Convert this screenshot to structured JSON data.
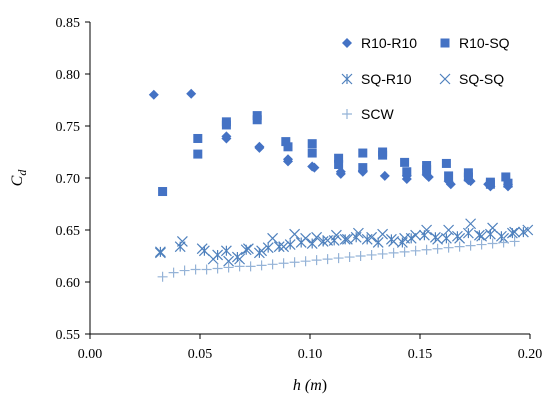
{
  "chart_data": {
    "type": "scatter",
    "xlabel": "h (m)",
    "ylabel": "C_d",
    "xlim": [
      0.0,
      0.2
    ],
    "ylim": [
      0.55,
      0.85
    ],
    "xticks": [
      "0.00",
      "0.05",
      "0.10",
      "0.15",
      "0.20"
    ],
    "yticks": [
      "0.55",
      "0.60",
      "0.65",
      "0.70",
      "0.75",
      "0.80",
      "0.85"
    ],
    "grid": false,
    "legend_position": "top-right",
    "series": [
      {
        "name": "R10-R10",
        "marker": "diamond",
        "color": "#4472c4",
        "points": [
          [
            0.029,
            0.78
          ],
          [
            0.046,
            0.781
          ],
          [
            0.062,
            0.74
          ],
          [
            0.062,
            0.738
          ],
          [
            0.077,
            0.73
          ],
          [
            0.077,
            0.729
          ],
          [
            0.09,
            0.718
          ],
          [
            0.09,
            0.716
          ],
          [
            0.101,
            0.711
          ],
          [
            0.102,
            0.71
          ],
          [
            0.114,
            0.706
          ],
          [
            0.114,
            0.704
          ],
          [
            0.124,
            0.707
          ],
          [
            0.124,
            0.706
          ],
          [
            0.134,
            0.702
          ],
          [
            0.144,
            0.702
          ],
          [
            0.144,
            0.699
          ],
          [
            0.153,
            0.703
          ],
          [
            0.154,
            0.701
          ],
          [
            0.163,
            0.697
          ],
          [
            0.164,
            0.694
          ],
          [
            0.172,
            0.698
          ],
          [
            0.173,
            0.697
          ],
          [
            0.181,
            0.694
          ],
          [
            0.182,
            0.692
          ],
          [
            0.19,
            0.694
          ],
          [
            0.19,
            0.692
          ]
        ]
      },
      {
        "name": "R10-SQ",
        "marker": "square",
        "color": "#4472c4",
        "points": [
          [
            0.033,
            0.687
          ],
          [
            0.049,
            0.738
          ],
          [
            0.049,
            0.723
          ],
          [
            0.062,
            0.754
          ],
          [
            0.062,
            0.751
          ],
          [
            0.076,
            0.76
          ],
          [
            0.076,
            0.756
          ],
          [
            0.089,
            0.735
          ],
          [
            0.09,
            0.73
          ],
          [
            0.101,
            0.733
          ],
          [
            0.101,
            0.724
          ],
          [
            0.113,
            0.719
          ],
          [
            0.113,
            0.713
          ],
          [
            0.124,
            0.724
          ],
          [
            0.124,
            0.71
          ],
          [
            0.133,
            0.725
          ],
          [
            0.133,
            0.722
          ],
          [
            0.143,
            0.715
          ],
          [
            0.144,
            0.706
          ],
          [
            0.153,
            0.712
          ],
          [
            0.153,
            0.708
          ],
          [
            0.162,
            0.714
          ],
          [
            0.163,
            0.702
          ],
          [
            0.172,
            0.705
          ],
          [
            0.172,
            0.701
          ],
          [
            0.182,
            0.696
          ],
          [
            0.182,
            0.694
          ],
          [
            0.189,
            0.701
          ],
          [
            0.19,
            0.695
          ]
        ]
      },
      {
        "name": "SQ-R10",
        "marker": "asterisk",
        "color": "#4f81bd",
        "points": [
          [
            0.032,
            0.629
          ],
          [
            0.041,
            0.634
          ],
          [
            0.052,
            0.63
          ],
          [
            0.058,
            0.626
          ],
          [
            0.062,
            0.63
          ],
          [
            0.067,
            0.624
          ],
          [
            0.071,
            0.631
          ],
          [
            0.077,
            0.628
          ],
          [
            0.081,
            0.633
          ],
          [
            0.086,
            0.634
          ],
          [
            0.091,
            0.636
          ],
          [
            0.096,
            0.638
          ],
          [
            0.101,
            0.637
          ],
          [
            0.106,
            0.639
          ],
          [
            0.111,
            0.64
          ],
          [
            0.116,
            0.641
          ],
          [
            0.121,
            0.643
          ],
          [
            0.126,
            0.641
          ],
          [
            0.131,
            0.638
          ],
          [
            0.137,
            0.641
          ],
          [
            0.142,
            0.638
          ],
          [
            0.146,
            0.642
          ],
          [
            0.152,
            0.645
          ],
          [
            0.157,
            0.643
          ],
          [
            0.162,
            0.642
          ],
          [
            0.167,
            0.644
          ],
          [
            0.172,
            0.647
          ],
          [
            0.177,
            0.645
          ],
          [
            0.182,
            0.646
          ],
          [
            0.187,
            0.644
          ],
          [
            0.192,
            0.647
          ],
          [
            0.197,
            0.648
          ]
        ]
      },
      {
        "name": "SQ-SQ",
        "marker": "x",
        "color": "#4f81bd",
        "points": [
          [
            0.032,
            0.628
          ],
          [
            0.042,
            0.639
          ],
          [
            0.051,
            0.632
          ],
          [
            0.056,
            0.622
          ],
          [
            0.063,
            0.62
          ],
          [
            0.068,
            0.622
          ],
          [
            0.072,
            0.632
          ],
          [
            0.078,
            0.63
          ],
          [
            0.083,
            0.642
          ],
          [
            0.088,
            0.634
          ],
          [
            0.093,
            0.646
          ],
          [
            0.098,
            0.642
          ],
          [
            0.103,
            0.643
          ],
          [
            0.108,
            0.64
          ],
          [
            0.112,
            0.645
          ],
          [
            0.117,
            0.641
          ],
          [
            0.122,
            0.647
          ],
          [
            0.128,
            0.643
          ],
          [
            0.133,
            0.646
          ],
          [
            0.138,
            0.639
          ],
          [
            0.143,
            0.642
          ],
          [
            0.148,
            0.645
          ],
          [
            0.153,
            0.65
          ],
          [
            0.158,
            0.641
          ],
          [
            0.163,
            0.65
          ],
          [
            0.168,
            0.642
          ],
          [
            0.173,
            0.656
          ],
          [
            0.178,
            0.644
          ],
          [
            0.183,
            0.652
          ],
          [
            0.188,
            0.642
          ],
          [
            0.193,
            0.648
          ],
          [
            0.199,
            0.65
          ]
        ]
      },
      {
        "name": "SCW",
        "marker": "plus",
        "color": "#95b3d7",
        "points": [
          [
            0.033,
            0.605
          ],
          [
            0.038,
            0.609
          ],
          [
            0.043,
            0.611
          ],
          [
            0.048,
            0.612
          ],
          [
            0.053,
            0.612
          ],
          [
            0.058,
            0.613
          ],
          [
            0.063,
            0.614
          ],
          [
            0.068,
            0.615
          ],
          [
            0.073,
            0.615
          ],
          [
            0.078,
            0.616
          ],
          [
            0.083,
            0.617
          ],
          [
            0.088,
            0.618
          ],
          [
            0.093,
            0.619
          ],
          [
            0.098,
            0.62
          ],
          [
            0.103,
            0.621
          ],
          [
            0.108,
            0.622
          ],
          [
            0.113,
            0.623
          ],
          [
            0.118,
            0.624
          ],
          [
            0.123,
            0.625
          ],
          [
            0.128,
            0.626
          ],
          [
            0.133,
            0.627
          ],
          [
            0.138,
            0.628
          ],
          [
            0.143,
            0.629
          ],
          [
            0.148,
            0.63
          ],
          [
            0.153,
            0.631
          ],
          [
            0.158,
            0.632
          ],
          [
            0.163,
            0.633
          ],
          [
            0.168,
            0.634
          ],
          [
            0.173,
            0.635
          ],
          [
            0.178,
            0.636
          ],
          [
            0.183,
            0.637
          ],
          [
            0.188,
            0.638
          ],
          [
            0.193,
            0.639
          ]
        ]
      }
    ]
  }
}
